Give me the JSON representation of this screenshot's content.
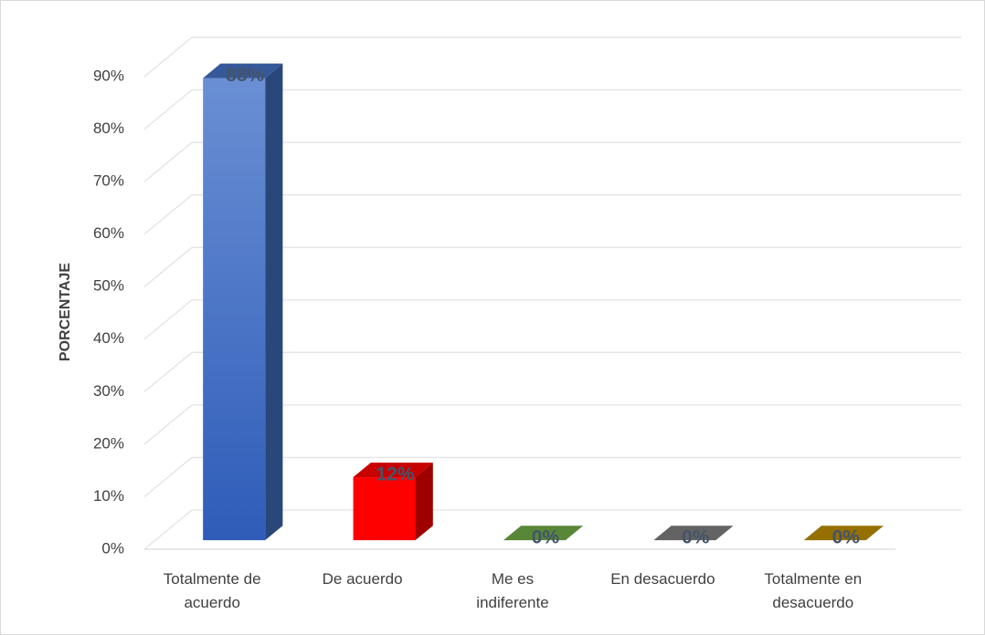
{
  "chart_data": {
    "type": "bar3d",
    "y_axis_label": "PORCENTAJE",
    "categories": [
      "Totalmente de acuerdo",
      "De acuerdo",
      "Me es indiferente",
      "En desacuerdo",
      "Totalmente en desacuerdo"
    ],
    "values": [
      88,
      12,
      0,
      0,
      0
    ],
    "value_labels": [
      "88%",
      "12%",
      "0%",
      "0%",
      "0%"
    ],
    "colors": [
      "#4472c4",
      "#ff0000",
      "#70ad47",
      "#7f7f7f",
      "#bf9000"
    ],
    "ylim": [
      0,
      90
    ],
    "yticks": [
      {
        "value": 0,
        "label": "0%"
      },
      {
        "value": 10,
        "label": "10%"
      },
      {
        "value": 20,
        "label": "20%"
      },
      {
        "value": 30,
        "label": "30%"
      },
      {
        "value": 40,
        "label": "40%"
      },
      {
        "value": 50,
        "label": "50%"
      },
      {
        "value": 60,
        "label": "60%"
      },
      {
        "value": 70,
        "label": "70%"
      },
      {
        "value": 80,
        "label": "80%"
      },
      {
        "value": 90,
        "label": "90%"
      }
    ],
    "grid": true
  }
}
